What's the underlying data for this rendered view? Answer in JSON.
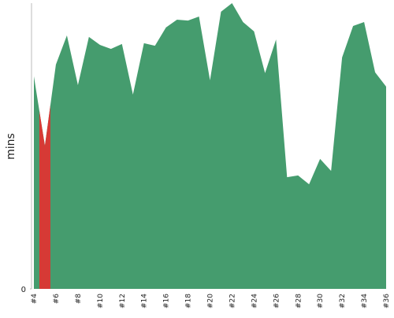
{
  "chart_data": {
    "type": "area",
    "ylabel": "mins",
    "categories": [
      "#4",
      null,
      "#6",
      null,
      "#8",
      null,
      "#10",
      null,
      "#12",
      null,
      "#14",
      null,
      "#16",
      null,
      "#18",
      null,
      "#20",
      null,
      "#22",
      null,
      "#24",
      null,
      "#26",
      null,
      "#28",
      null,
      "#30",
      null,
      "#32",
      null,
      "#34",
      null,
      "#36"
    ],
    "values": [
      74.4,
      50.1,
      78.5,
      88.7,
      71.3,
      88.2,
      85.4,
      84.0,
      85.7,
      68.0,
      86.0,
      85.1,
      91.5,
      94.2,
      93.9,
      95.3,
      73.0,
      97.0,
      100,
      93.4,
      90.1,
      75.5,
      87.3,
      39.1,
      39.7,
      36.6,
      45.5,
      41.3,
      81.0,
      92.0,
      93.4,
      75.8,
      70.8
    ],
    "color": "#459c6e",
    "highlight": {
      "index": 1,
      "color": "#d63a35"
    },
    "ylim": [
      0,
      100
    ],
    "yticks": [
      0
    ]
  }
}
